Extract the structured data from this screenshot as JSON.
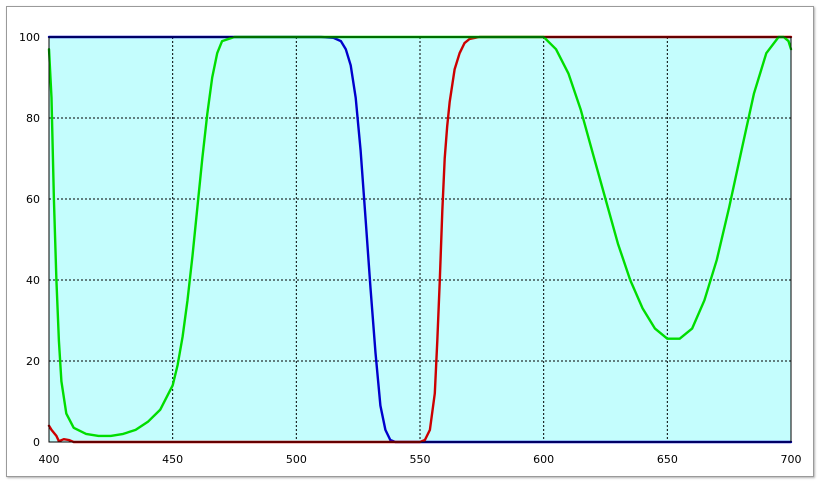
{
  "chart_data": {
    "type": "line",
    "title": "",
    "xlabel": "",
    "ylabel": "",
    "xlim": [
      400,
      700
    ],
    "ylim": [
      0,
      100
    ],
    "x_ticks": [
      "400",
      "450",
      "500",
      "550",
      "600",
      "650",
      "700"
    ],
    "y_ticks": [
      "0",
      "20",
      "40",
      "60",
      "80",
      "100"
    ],
    "grid": true,
    "background_color": "#c4fdfd",
    "series": [
      {
        "color": "#0000cc",
        "x": [
          400,
          510,
          515,
          518,
          520,
          522,
          524,
          526,
          528,
          530,
          532,
          534,
          536,
          538,
          540,
          700
        ],
        "y": [
          100,
          100,
          99.8,
          99,
          97,
          93,
          85,
          72,
          55,
          38,
          22,
          9,
          3,
          0.5,
          0,
          0
        ]
      },
      {
        "color": "#cc0000",
        "x": [
          400,
          401,
          403,
          404,
          406,
          408,
          410,
          550,
          552,
          554,
          556,
          557,
          558,
          559,
          560,
          561,
          562,
          564,
          566,
          568,
          570,
          574,
          578,
          700
        ],
        "y": [
          4,
          3,
          1.5,
          0.2,
          0.7,
          0.5,
          0,
          0,
          0.5,
          3,
          12,
          25,
          40,
          57,
          70,
          78,
          84,
          92,
          96,
          98.5,
          99.5,
          100,
          100,
          100
        ]
      },
      {
        "color": "#00dd00",
        "x": [
          400,
          401,
          402,
          403,
          404,
          405,
          407,
          410,
          415,
          420,
          425,
          430,
          435,
          440,
          445,
          450,
          452,
          454,
          456,
          458,
          460,
          462,
          464,
          466,
          468,
          470,
          475,
          600,
          605,
          610,
          615,
          620,
          625,
          630,
          635,
          640,
          645,
          650,
          655,
          660,
          665,
          670,
          675,
          680,
          685,
          690,
          695,
          697,
          699,
          700
        ],
        "y": [
          97,
          85,
          60,
          40,
          25,
          15,
          7,
          3.5,
          2,
          1.5,
          1.5,
          2,
          3,
          5,
          8,
          14,
          19,
          26,
          35,
          46,
          58,
          70,
          81,
          90,
          96,
          99,
          100,
          100,
          97,
          91,
          82,
          71,
          60,
          49,
          40,
          33,
          28,
          25.5,
          25.5,
          28,
          35,
          45,
          58,
          72,
          86,
          96,
          100,
          100,
          99,
          97
        ]
      }
    ]
  }
}
